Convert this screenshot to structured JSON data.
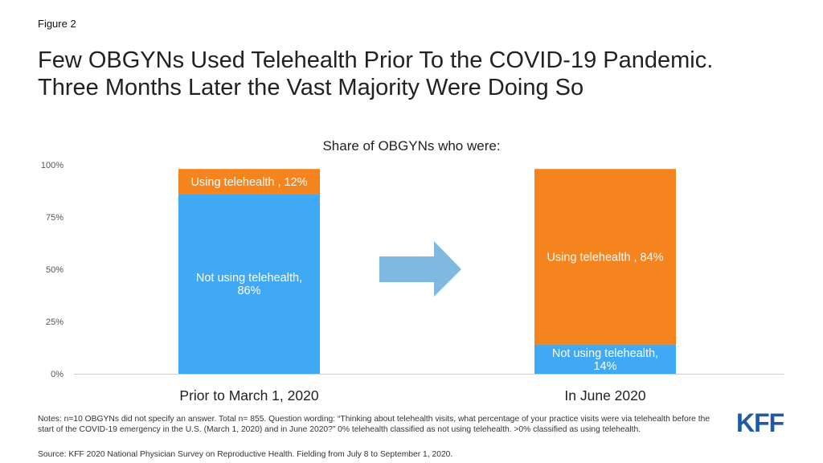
{
  "figure_label": "Figure 2",
  "title_lines": [
    "Few OBGYNs Used Telehealth Prior To the COVID-19 Pandemic.",
    "Three Months Later the Vast Majority Were Doing So"
  ],
  "notes": "Notes: n=10 OBGYNs did not specify an answer. Total n= 855. Question wording: “Thinking about telehealth visits, what percentage of your practice visits were via telehealth before the start of the COVID-19 emergency in the U.S. (March 1, 2020) and in June 2020?” 0% telehealth classified as not using telehealth. >0% classified as using telehealth.",
  "source": "Source: KFF 2020 National Physician Survey on Reproductive Health. Fielding from July 8 to September 1, 2020.",
  "logo_text": "KFF",
  "colors": {
    "not_using": "#3fa9f5",
    "using": "#f5841f",
    "arrow": "#7fb8e0",
    "logo": "#1f5aa6"
  },
  "chart_data": {
    "type": "bar",
    "stacked": true,
    "title": "Share of OBGYNs who were:",
    "categories": [
      "Prior to March 1, 2020",
      "In June 2020"
    ],
    "series": [
      {
        "name": "Not using telehealth",
        "values": [
          86,
          14
        ],
        "color": "#3fa9f5",
        "labels": [
          [
            "Not using telehealth,",
            "86%"
          ],
          [
            "Not using telehealth,",
            "14%"
          ]
        ]
      },
      {
        "name": "Using telehealth",
        "values": [
          12,
          84
        ],
        "color": "#f5841f",
        "labels": [
          [
            "Using telehealth , 12%"
          ],
          [
            "Using telehealth , 84%"
          ]
        ]
      }
    ],
    "yticks": [
      "0%",
      "25%",
      "50%",
      "75%",
      "100%"
    ],
    "ylim": [
      0,
      100
    ],
    "grid": false,
    "legend": "none",
    "annotation": "arrow"
  }
}
